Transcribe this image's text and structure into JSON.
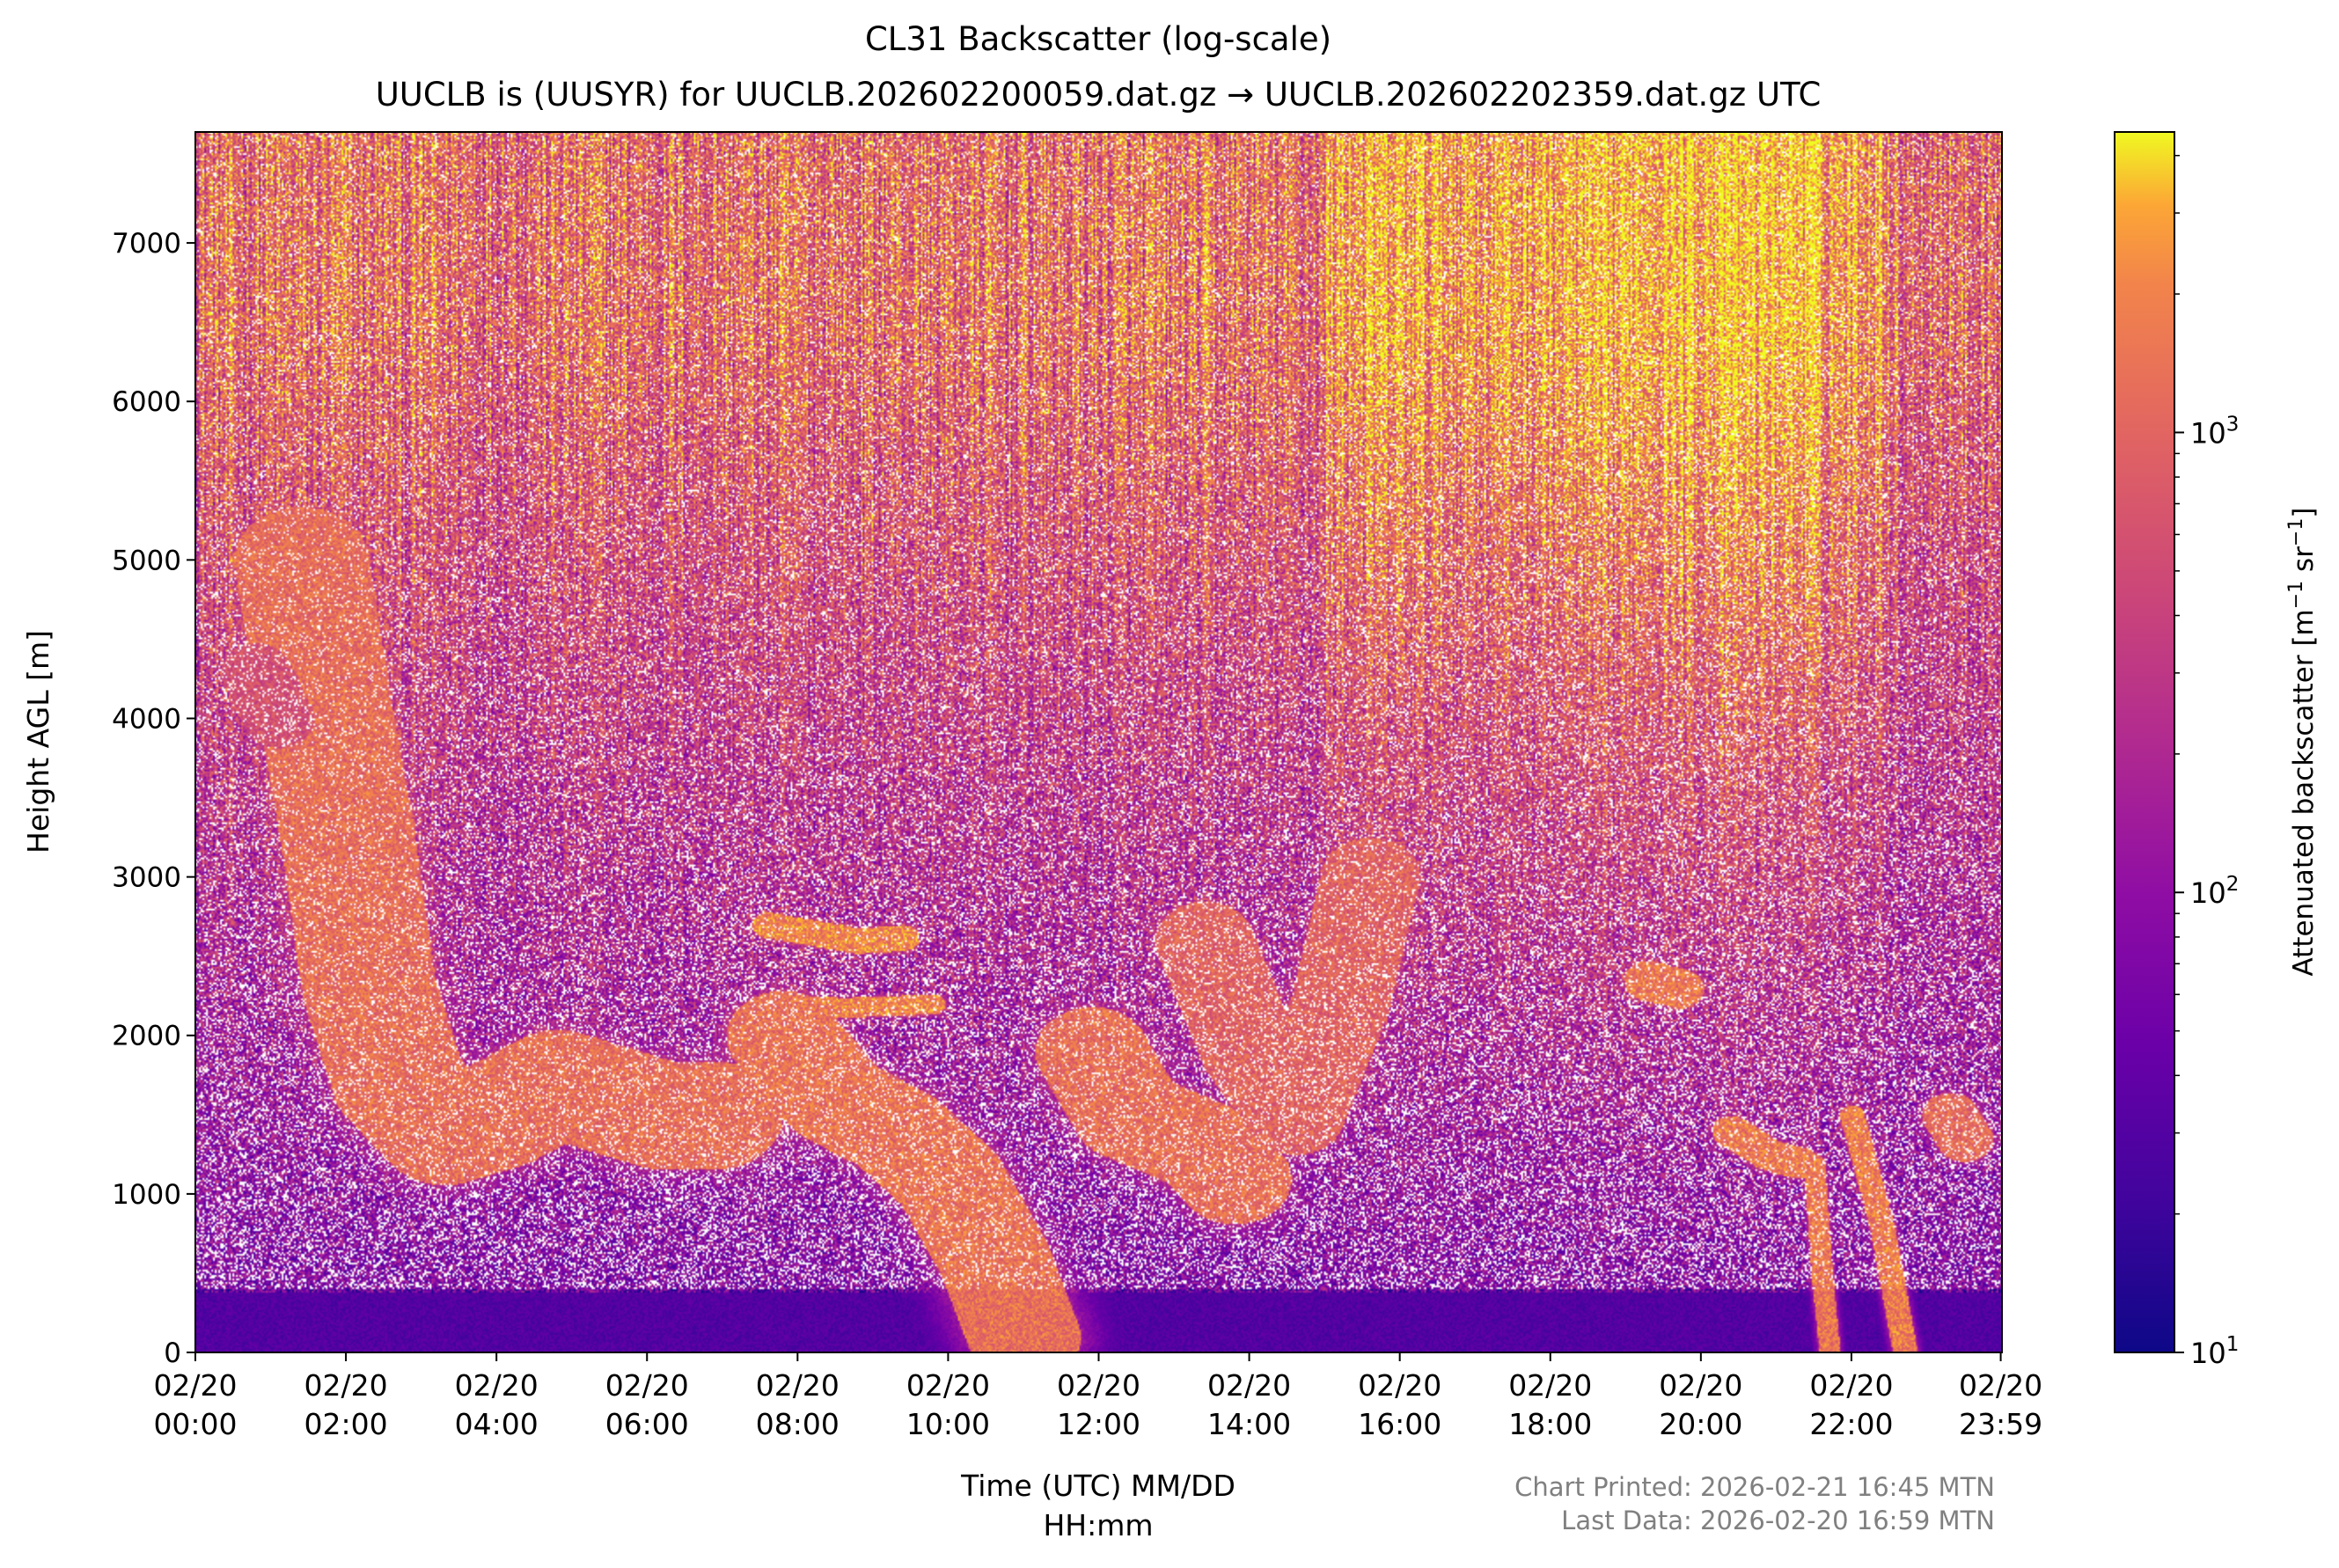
{
  "chart_data": {
    "type": "heatmap",
    "title": "CL31 Backscatter (log-scale)",
    "subtitle": "UUCLB is (UUSYR) for UUCLB.202602200059.dat.gz → UUCLB.202602202359.dat.gz UTC",
    "xlabel_line1": "Time (UTC) MM/DD",
    "xlabel_line2": "HH:mm",
    "ylabel": "Height AGL [m]",
    "colorbar_label": "Attenuated backscatter [m",
    "colorbar_label_exp1": "−1",
    "colorbar_label_mid": " sr",
    "colorbar_label_exp2": "−1",
    "colorbar_label_end": "]",
    "colormap": "plasma",
    "colorbar_scale": "log",
    "colorbar_range": [
      10,
      4500
    ],
    "colorbar_ticks": [
      {
        "value": 10,
        "base": "10",
        "exp": "1"
      },
      {
        "value": 100,
        "base": "10",
        "exp": "2"
      },
      {
        "value": 1000,
        "base": "10",
        "exp": "3"
      }
    ],
    "x_range_hours": [
      0,
      24
    ],
    "y_range_m": [
      0,
      7700
    ],
    "x_ticks": [
      {
        "hour": 0,
        "date": "02/20",
        "time": "00:00"
      },
      {
        "hour": 2,
        "date": "02/20",
        "time": "02:00"
      },
      {
        "hour": 4,
        "date": "02/20",
        "time": "04:00"
      },
      {
        "hour": 6,
        "date": "02/20",
        "time": "06:00"
      },
      {
        "hour": 8,
        "date": "02/20",
        "time": "08:00"
      },
      {
        "hour": 10,
        "date": "02/20",
        "time": "10:00"
      },
      {
        "hour": 12,
        "date": "02/20",
        "time": "12:00"
      },
      {
        "hour": 14,
        "date": "02/20",
        "time": "14:00"
      },
      {
        "hour": 16,
        "date": "02/20",
        "time": "16:00"
      },
      {
        "hour": 18,
        "date": "02/20",
        "time": "18:00"
      },
      {
        "hour": 20,
        "date": "02/20",
        "time": "20:00"
      },
      {
        "hour": 22,
        "date": "02/20",
        "time": "22:00"
      },
      {
        "hour": 23.9833,
        "date": "02/20",
        "time": "23:59"
      }
    ],
    "y_ticks": [
      0,
      1000,
      2000,
      3000,
      4000,
      5000,
      6000,
      7000
    ],
    "features": [
      {
        "kind": "surface_layer",
        "h0": 0,
        "h1": 24,
        "y0": 0,
        "y1": 380,
        "level": 15
      },
      {
        "kind": "plume",
        "points": [
          [
            1.4,
            5000
          ],
          [
            1.7,
            4100
          ],
          [
            2.0,
            3300
          ],
          [
            2.3,
            2300
          ],
          [
            2.7,
            1700
          ],
          [
            3.3,
            1400
          ],
          [
            4.0,
            1500
          ],
          [
            4.8,
            1700
          ],
          [
            5.5,
            1600
          ],
          [
            6.2,
            1500
          ],
          [
            6.9,
            1500
          ]
        ],
        "halfwidth_m": 380,
        "level": 2000
      },
      {
        "kind": "plume",
        "points": [
          [
            7.6,
            2700
          ],
          [
            8.2,
            2650
          ],
          [
            8.8,
            2600
          ],
          [
            9.4,
            2620
          ]
        ],
        "halfwidth_m": 90,
        "level": 3200
      },
      {
        "kind": "plume",
        "points": [
          [
            7.8,
            2200
          ],
          [
            8.6,
            2180
          ],
          [
            9.8,
            2200
          ]
        ],
        "halfwidth_m": 70,
        "level": 3000
      },
      {
        "kind": "plume",
        "points": [
          [
            7.8,
            2000
          ],
          [
            8.5,
            1600
          ],
          [
            9.3,
            1400
          ],
          [
            10.0,
            1100
          ],
          [
            10.6,
            600
          ],
          [
            11.0,
            100
          ]
        ],
        "halfwidth_m": 320,
        "level": 2200
      },
      {
        "kind": "plume",
        "points": [
          [
            11.9,
            1900
          ],
          [
            12.4,
            1500
          ],
          [
            12.9,
            1400
          ],
          [
            13.4,
            1300
          ],
          [
            13.8,
            1100
          ]
        ],
        "halfwidth_m": 320,
        "level": 2000
      },
      {
        "kind": "plume",
        "points": [
          [
            13.4,
            2600
          ],
          [
            14.0,
            1900
          ],
          [
            14.6,
            1500
          ],
          [
            15.2,
            2200
          ],
          [
            15.6,
            3000
          ]
        ],
        "halfwidth_m": 280,
        "level": 1500
      },
      {
        "kind": "plume",
        "points": [
          [
            19.3,
            2350
          ],
          [
            19.7,
            2300
          ]
        ],
        "halfwidth_m": 140,
        "level": 2500
      },
      {
        "kind": "plume",
        "points": [
          [
            20.4,
            1400
          ],
          [
            20.9,
            1250
          ],
          [
            21.3,
            1200
          ]
        ],
        "halfwidth_m": 110,
        "level": 2600
      },
      {
        "kind": "plume",
        "points": [
          [
            21.5,
            1200
          ],
          [
            21.6,
            500
          ],
          [
            21.7,
            20
          ]
        ],
        "halfwidth_m": 60,
        "level": 2500
      },
      {
        "kind": "plume",
        "points": [
          [
            22.0,
            1500
          ],
          [
            22.4,
            800
          ],
          [
            22.7,
            20
          ]
        ],
        "halfwidth_m": 70,
        "level": 2700
      },
      {
        "kind": "plume",
        "points": [
          [
            23.3,
            1500
          ],
          [
            23.5,
            1350
          ]
        ],
        "halfwidth_m": 160,
        "level": 1800
      },
      {
        "kind": "plume",
        "points": [
          [
            0.8,
            4300
          ],
          [
            1.1,
            4000
          ]
        ],
        "halfwidth_m": 200,
        "level": 900
      }
    ]
  },
  "footer": {
    "printed": "Chart Printed: 2026-02-21 16:45 MTN",
    "last_data": "Last Data: 2026-02-20 16:59 MTN"
  }
}
